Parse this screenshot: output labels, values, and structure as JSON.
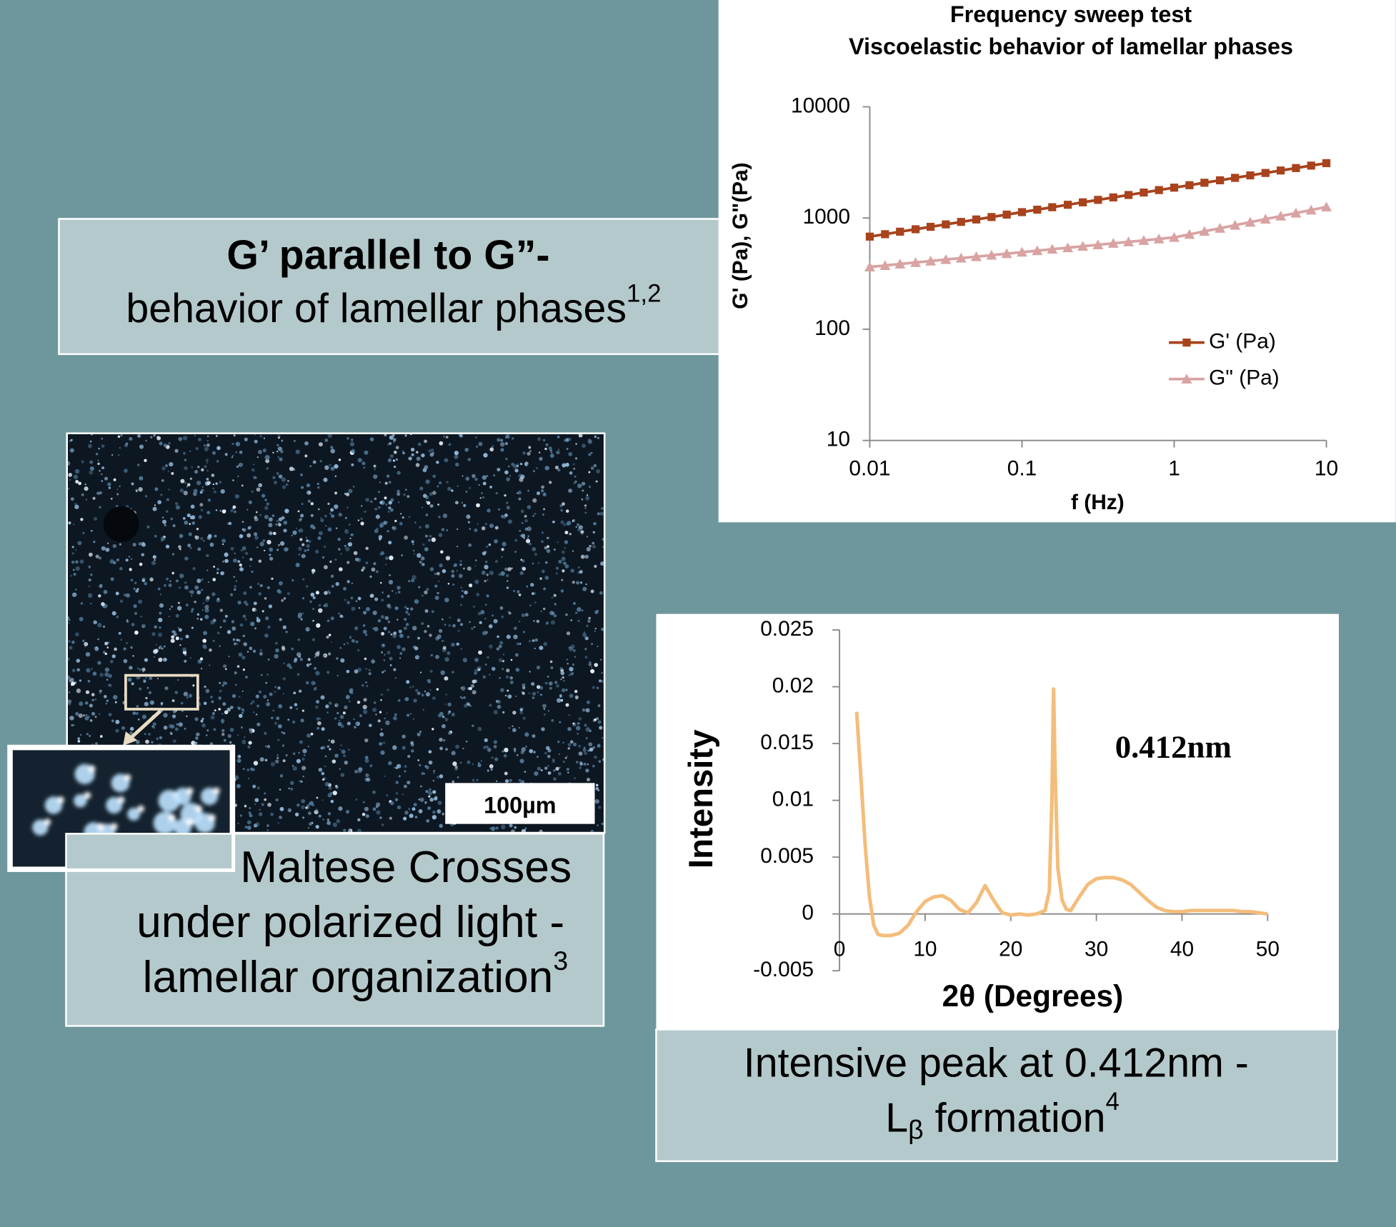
{
  "chart_data": [
    {
      "type": "line",
      "title": "Frequency sweep test",
      "subtitle": "Viscoelastic behavior of lamellar phases",
      "x_label": "f (Hz)",
      "y_label": "G' (Pa), G\"(Pa)",
      "x": [
        0.01,
        0.0126,
        0.0158,
        0.02,
        0.0251,
        0.0316,
        0.0398,
        0.0501,
        0.0631,
        0.0794,
        0.1,
        0.126,
        0.158,
        0.2,
        0.251,
        0.316,
        0.398,
        0.501,
        0.631,
        0.794,
        1,
        1.26,
        1.58,
        2,
        2.51,
        3.16,
        3.98,
        5.01,
        6.31,
        7.94,
        10
      ],
      "series": [
        {
          "name": "G' (Pa)",
          "color": "#a8431d",
          "marker": "square",
          "values": [
            680,
            715,
            753,
            792,
            833,
            876,
            922,
            970,
            1020,
            1073,
            1129,
            1188,
            1250,
            1315,
            1383,
            1455,
            1531,
            1610,
            1694,
            1782,
            1875,
            1972,
            2075,
            2183,
            2296,
            2416,
            2541,
            2673,
            2812,
            2958,
            3112
          ]
        },
        {
          "name": "G\" (Pa)",
          "color": "#d9a3a3",
          "marker": "triangle",
          "values": [
            363,
            374,
            386,
            398,
            410,
            423,
            436,
            449,
            463,
            478,
            493,
            508,
            524,
            540,
            557,
            574,
            592,
            610,
            629,
            649,
            669,
            712,
            759,
            808,
            861,
            917,
            976,
            1040,
            1107,
            1179,
            1256
          ]
        }
      ],
      "xlim": [
        0.01,
        10
      ],
      "xticks": [
        0.01,
        0.1,
        1,
        10
      ],
      "xscale": "log",
      "ylim": [
        10,
        10000
      ],
      "yticks": [
        10,
        100,
        1000,
        10000
      ],
      "yscale": "log",
      "grid": false,
      "legend": "center right"
    },
    {
      "type": "line",
      "x_label": "2θ (Degrees)",
      "y_label": "Intensity",
      "annotation": "0.412nm",
      "x": [
        2,
        2.5,
        3,
        3.5,
        4,
        4.5,
        5,
        6,
        7,
        8,
        9,
        10,
        11,
        12,
        13,
        14,
        15,
        16,
        17,
        18,
        19,
        20,
        21,
        22,
        23,
        24,
        24.5,
        24.8,
        25,
        25.2,
        25.5,
        26,
        26.5,
        27,
        28,
        29,
        30,
        31,
        32,
        33,
        34,
        35,
        36,
        37,
        38,
        39,
        40,
        41,
        42,
        43,
        44,
        45,
        46,
        47,
        48,
        49,
        50
      ],
      "series": [
        {
          "color": "#f4bd7b",
          "values": [
            0.0178,
            0.012,
            0.006,
            0.0015,
            -0.001,
            -0.0018,
            -0.0019,
            -0.0019,
            -0.0017,
            -0.001,
            0.0002,
            0.0011,
            0.0015,
            0.0016,
            0.0012,
            0.0004,
            0.0001,
            0.001,
            0.0025,
            0.0012,
            0.0001,
            -0.0001,
            0,
            -0.0001,
            0,
            0.0003,
            0.002,
            0.01,
            0.0198,
            0.012,
            0.004,
            0.0012,
            0.0004,
            0.0003,
            0.0015,
            0.0026,
            0.0031,
            0.0032,
            0.0032,
            0.003,
            0.0026,
            0.0019,
            0.0012,
            0.0006,
            0.0003,
            0.0002,
            0.0002,
            0.0003,
            0.0003,
            0.0003,
            0.0003,
            0.0003,
            0.0003,
            0.0002,
            0.0002,
            0.0001,
            0
          ]
        }
      ],
      "xlim": [
        0,
        50
      ],
      "xticks": [
        0,
        10,
        20,
        30,
        40,
        50
      ],
      "ylim": [
        -0.005,
        0.025
      ],
      "yticks": [
        -0.005,
        0,
        0.005,
        0.01,
        0.015,
        0.02,
        0.025
      ],
      "grid": false
    }
  ],
  "boxes": [
    {
      "line1": "G’ parallel to G”-",
      "line2": "behavior of lamellar phases",
      "sup": "1,2"
    },
    {
      "line1": "Maltese Crosses",
      "line2": "under polarized light -",
      "line3": "lamellar organization",
      "sup": "3"
    },
    {
      "line1": "Intensive peak at 0.412nm -",
      "line2a": "L",
      "sub": "β",
      "line2b": " formation",
      "sup": "4"
    }
  ],
  "micrograph": {
    "scale_bar": "100µm"
  }
}
